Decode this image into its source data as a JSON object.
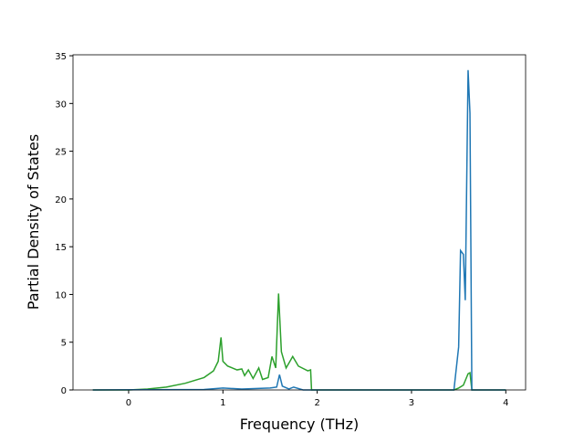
{
  "chart_data": {
    "type": "line",
    "x_label": "Frequency (THz)",
    "y_label": "Partial Density of States",
    "xlim": [
      -0.59,
      4.21
    ],
    "xticks": [
      0,
      1,
      2,
      3,
      4
    ],
    "ylim": [
      0,
      35.1
    ],
    "yticks": [
      0,
      5,
      10,
      15,
      20,
      25,
      30,
      35
    ],
    "series": [
      {
        "color": "#2ca02c",
        "x": [
          -0.38,
          0,
          0.2,
          0.4,
          0.6,
          0.8,
          0.9,
          0.95,
          0.98,
          1.0,
          1.05,
          1.15,
          1.2,
          1.23,
          1.27,
          1.32,
          1.38,
          1.42,
          1.48,
          1.52,
          1.56,
          1.59,
          1.62,
          1.67,
          1.74,
          1.8,
          1.9,
          1.93,
          1.94,
          3.45,
          3.5,
          3.55,
          3.6,
          3.62,
          3.64,
          4.0
        ],
        "values": [
          0,
          0,
          0.1,
          0.3,
          0.7,
          1.3,
          2.0,
          3.0,
          5.5,
          3.0,
          2.5,
          2.1,
          2.2,
          1.5,
          2.1,
          1.2,
          2.3,
          1.1,
          1.3,
          3.5,
          2.3,
          10.1,
          4.0,
          2.3,
          3.5,
          2.5,
          2.0,
          2.1,
          0,
          0,
          0.2,
          0.5,
          1.7,
          1.8,
          0,
          0
        ]
      },
      {
        "color": "#1f77b4",
        "x": [
          -0.38,
          0.8,
          1.0,
          1.2,
          1.5,
          1.57,
          1.6,
          1.63,
          1.7,
          1.75,
          1.85,
          3.45,
          3.5,
          3.52,
          3.55,
          3.57,
          3.6,
          3.62,
          3.64,
          4.0
        ],
        "values": [
          0,
          0.05,
          0.2,
          0.1,
          0.2,
          0.3,
          1.6,
          0.4,
          0.1,
          0.3,
          0,
          0,
          4.5,
          14.6,
          14.2,
          9.4,
          33.5,
          29,
          0,
          0
        ]
      }
    ]
  }
}
